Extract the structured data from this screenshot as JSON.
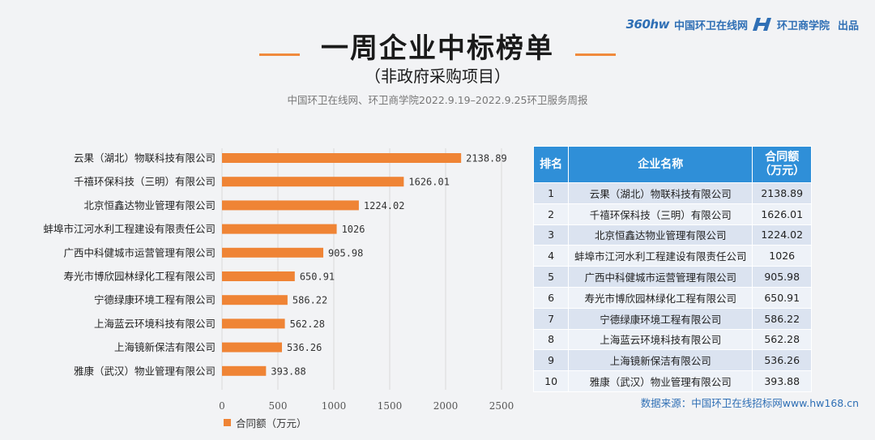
{
  "header": {
    "logo_360": "360hw",
    "brand1": "中国环卫在线网",
    "brand2": "环卫商学院",
    "publish": "出品"
  },
  "title": "一周企业中标榜单",
  "subtitle": "（非政府采购项目）",
  "source_line": "中国环卫在线网、环卫商学院2022.9.19–2022.9.25环卫服务周报",
  "colors": {
    "bar": "#ef8435",
    "table_header": "#2f8fd8",
    "accent_line": "#f08a3c"
  },
  "chart_data": {
    "type": "bar",
    "orientation": "horizontal",
    "categories": [
      "云果（湖北）物联科技有限公司",
      "千禧环保科技（三明）有限公司",
      "北京恒鑫达物业管理有限公司",
      "蚌埠市江河水利工程建设有限责任公司",
      "广西中科健城市运营管理有限公司",
      "寿光市博欣园林绿化工程有限公司",
      "宁德绿康环境工程有限公司",
      "上海蓝云环境科技有限公司",
      "上海镜新保洁有限公司",
      "雅康（武汉）物业管理有限公司"
    ],
    "values": [
      2138.89,
      1626.01,
      1224.02,
      1026,
      905.98,
      650.91,
      586.22,
      562.28,
      536.26,
      393.88
    ],
    "value_labels": [
      "2138.89",
      "1626.01",
      "1224.02",
      "1026",
      "905.98",
      "650.91",
      "586.22",
      "562.28",
      "536.26",
      "393.88"
    ],
    "xlim": [
      0,
      2500
    ],
    "xticks": [
      "0",
      "500",
      "1000",
      "1500",
      "2000",
      "2500"
    ],
    "legend": "合同额（万元）",
    "legend_position": "bottom-left"
  },
  "table": {
    "headers": {
      "rank": "排名",
      "name": "企业名称",
      "amount_line1": "合同额",
      "amount_line2": "（万元）"
    },
    "rows": [
      {
        "rank": "1",
        "name": "云果（湖北）物联科技有限公司",
        "amount": "2138.89"
      },
      {
        "rank": "2",
        "name": "千禧环保科技（三明）有限公司",
        "amount": "1626.01"
      },
      {
        "rank": "3",
        "name": "北京恒鑫达物业管理有限公司",
        "amount": "1224.02"
      },
      {
        "rank": "4",
        "name": "蚌埠市江河水利工程建设有限责任公司",
        "amount": "1026"
      },
      {
        "rank": "5",
        "name": "广西中科健城市运营管理有限公司",
        "amount": "905.98"
      },
      {
        "rank": "6",
        "name": "寿光市博欣园林绿化工程有限公司",
        "amount": "650.91"
      },
      {
        "rank": "7",
        "name": "宁德绿康环境工程有限公司",
        "amount": "586.22"
      },
      {
        "rank": "8",
        "name": "上海蓝云环境科技有限公司",
        "amount": "562.28"
      },
      {
        "rank": "9",
        "name": "上海镜新保洁有限公司",
        "amount": "536.26"
      },
      {
        "rank": "10",
        "name": "雅康（武汉）物业管理有限公司",
        "amount": "393.88"
      }
    ]
  },
  "data_source": "数据来源：中国环卫在线招标网www.hw168.cn"
}
